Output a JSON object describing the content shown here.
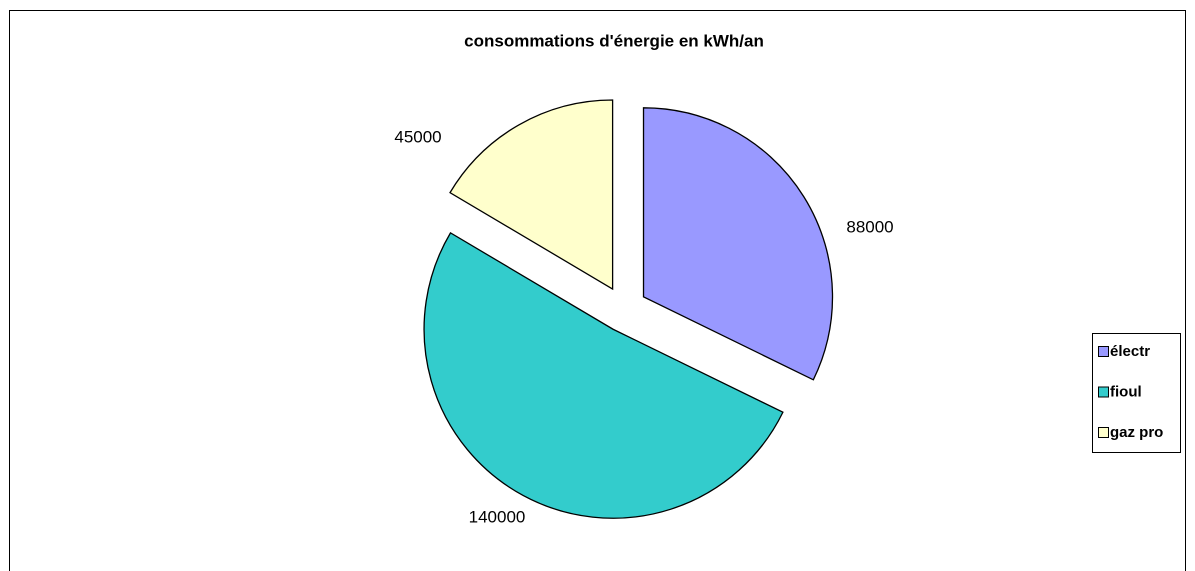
{
  "chart_data": {
    "type": "pie",
    "title": "consommations d'énergie en kWh/an",
    "categories": [
      "électr",
      "fioul",
      "gaz pro"
    ],
    "values": [
      88000,
      140000,
      45000
    ],
    "colors": [
      "#9999ff",
      "#33cccc",
      "#ffffcc"
    ],
    "exploded": true,
    "legend": "right"
  }
}
